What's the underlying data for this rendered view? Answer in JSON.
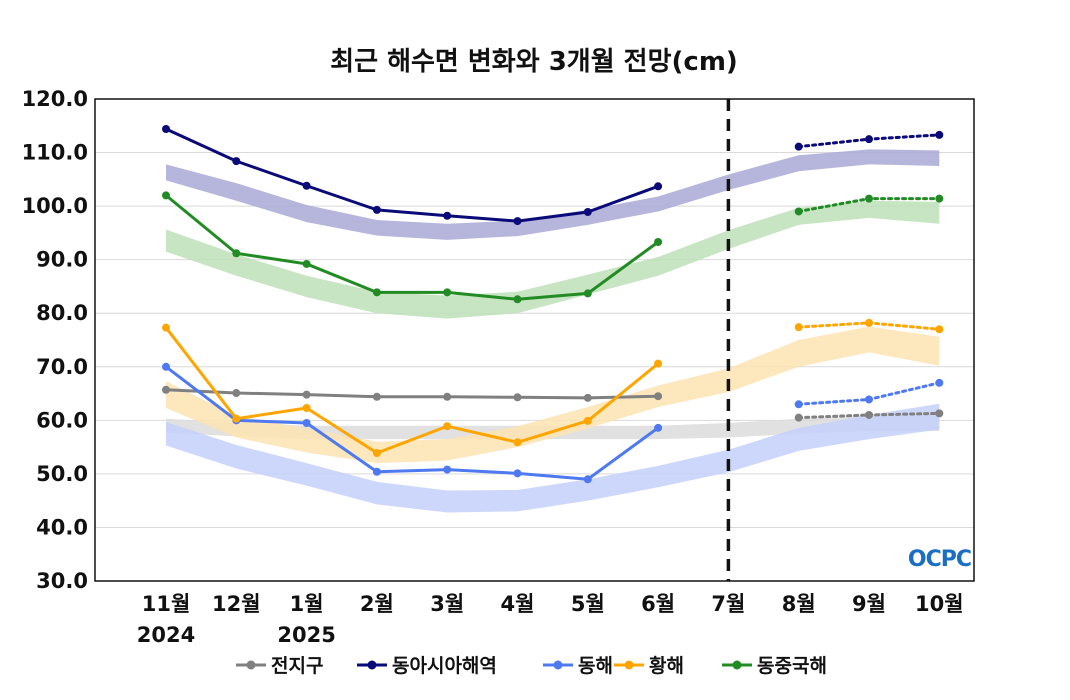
{
  "chart_data": {
    "type": "line",
    "title": "최근 해수면 변화와 3개월 전망(cm)",
    "xlabel": "",
    "ylabel": "",
    "ylim": [
      30,
      120
    ],
    "yticks": [
      "30.0",
      "40.0",
      "50.0",
      "60.0",
      "70.0",
      "80.0",
      "90.0",
      "100.0",
      "110.0",
      "120.0"
    ],
    "categories": [
      "11월",
      "12월",
      "1월",
      "2월",
      "3월",
      "4월",
      "5월",
      "6월",
      "7월",
      "8월",
      "9월",
      "10월"
    ],
    "year_labels": [
      {
        "index": 0,
        "text": "2024"
      },
      {
        "index": 2,
        "text": "2025"
      }
    ],
    "forecast_divider_after": "7월",
    "grid": true,
    "legend_position": "bottom",
    "logo_text": "OCPC",
    "series": [
      {
        "name": "전지구",
        "color": "#808080",
        "observed": [
          65.7,
          65.1,
          64.8,
          64.4,
          64.4,
          64.3,
          64.2,
          64.5,
          null,
          null,
          null,
          null
        ],
        "forecast": [
          null,
          null,
          null,
          null,
          null,
          null,
          null,
          null,
          null,
          60.5,
          61.0,
          61.3
        ],
        "band_low": [
          57.7,
          57.0,
          56.5,
          56.5,
          56.5,
          56.5,
          56.5,
          56.5,
          56.8,
          57.5,
          58.0,
          58.0
        ],
        "band_high": [
          60.3,
          59.5,
          59.0,
          59.0,
          59.0,
          59.0,
          59.0,
          59.0,
          59.5,
          60.3,
          61.0,
          61.5
        ]
      },
      {
        "name": "동아시아해역",
        "color": "#0a0a78",
        "observed": [
          114.4,
          108.4,
          103.8,
          99.3,
          98.2,
          97.2,
          98.9,
          103.7,
          null,
          null,
          null,
          null
        ],
        "forecast": [
          null,
          null,
          null,
          null,
          null,
          null,
          null,
          null,
          null,
          111.1,
          112.5,
          113.3
        ],
        "band_low": [
          104.8,
          101.0,
          97.0,
          94.5,
          93.7,
          94.4,
          96.5,
          99.0,
          103.0,
          106.5,
          107.8,
          107.5
        ],
        "band_high": [
          107.8,
          104.3,
          100.2,
          97.4,
          96.7,
          97.3,
          99.3,
          101.8,
          105.9,
          109.5,
          110.6,
          110.4
        ]
      },
      {
        "name": "동해",
        "color": "#4f79f0",
        "observed": [
          70.0,
          60.0,
          59.5,
          50.4,
          50.8,
          50.1,
          49.0,
          58.6,
          null,
          null,
          null,
          null
        ],
        "forecast": [
          null,
          null,
          null,
          null,
          null,
          null,
          null,
          null,
          null,
          63.0,
          63.9,
          67.0
        ],
        "band_low": [
          55.3,
          51.0,
          47.8,
          44.3,
          42.8,
          43.0,
          45.0,
          47.5,
          50.3,
          54.3,
          56.5,
          58.3
        ],
        "band_high": [
          59.7,
          55.4,
          52.0,
          48.5,
          46.9,
          47.0,
          49.0,
          51.5,
          54.5,
          58.6,
          61.0,
          63.1
        ]
      },
      {
        "name": "황해",
        "color": "#ffa500",
        "observed": [
          77.3,
          60.3,
          62.3,
          53.9,
          58.9,
          55.9,
          59.9,
          70.6,
          null,
          null,
          null,
          null
        ],
        "forecast": [
          null,
          null,
          null,
          null,
          null,
          null,
          null,
          null,
          null,
          77.4,
          78.2,
          77.0
        ],
        "band_low": [
          62.3,
          56.8,
          54.0,
          52.0,
          52.5,
          55.0,
          58.5,
          62.5,
          65.3,
          70.0,
          72.7,
          70.2
        ],
        "band_high": [
          67.3,
          60.8,
          58.5,
          56.0,
          56.5,
          58.9,
          62.5,
          66.5,
          69.7,
          75.0,
          77.5,
          75.6
        ]
      },
      {
        "name": "동중국해",
        "color": "#238b23",
        "observed": [
          102.0,
          91.2,
          89.2,
          83.9,
          83.9,
          82.6,
          83.7,
          93.3,
          null,
          null,
          null,
          null
        ],
        "forecast": [
          null,
          null,
          null,
          null,
          null,
          null,
          null,
          null,
          null,
          99.0,
          101.4,
          101.4
        ],
        "band_low": [
          91.5,
          87.0,
          83.0,
          80.0,
          79.0,
          80.0,
          83.5,
          87.0,
          92.0,
          96.5,
          97.8,
          96.7
        ],
        "band_high": [
          95.6,
          91.0,
          87.0,
          84.0,
          83.3,
          84.0,
          87.2,
          90.5,
          95.5,
          99.7,
          101.0,
          100.8
        ]
      }
    ]
  }
}
